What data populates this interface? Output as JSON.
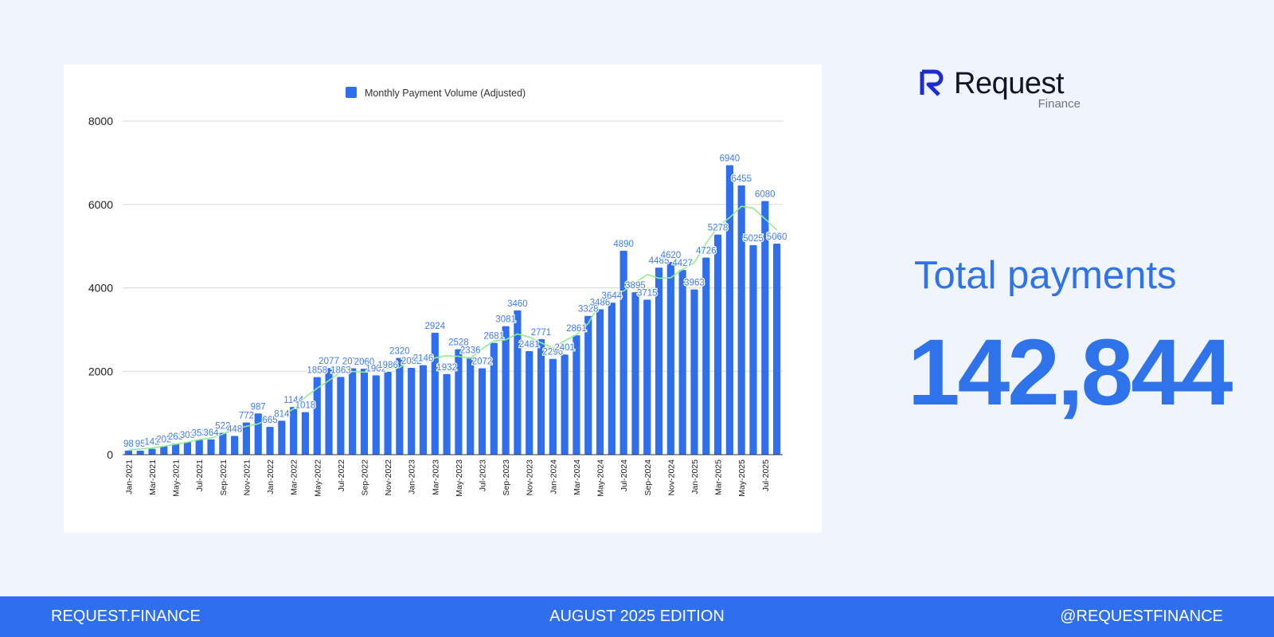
{
  "brand": {
    "name": "Request",
    "sub": "Finance"
  },
  "stats": {
    "label": "Total payments",
    "value": "142,844"
  },
  "footer": {
    "left": "REQUEST.FINANCE",
    "center": "AUGUST 2025  EDITION",
    "right": "@REQUESTFINANCE"
  },
  "colors": {
    "bar": "#2f6fee",
    "trend": "#8ff08f",
    "page_bg": "#f0f5fd",
    "footer_bg": "#2f6fee"
  },
  "chart_data": {
    "type": "bar",
    "legend": [
      "Monthly Payment Volume (Adjusted)"
    ],
    "legend_position": "top",
    "ylim": [
      0,
      8000
    ],
    "yticks": [
      0,
      2000,
      4000,
      6000,
      8000
    ],
    "grid": true,
    "trendline": "moving average",
    "categories": [
      "Jan-2021",
      "Feb-2021",
      "Mar-2021",
      "Apr-2021",
      "May-2021",
      "Jun-2021",
      "Jul-2021",
      "Aug-2021",
      "Sep-2021",
      "Oct-2021",
      "Nov-2021",
      "Dec-2021",
      "Jan-2022",
      "Feb-2022",
      "Mar-2022",
      "Apr-2022",
      "May-2022",
      "Jun-2022",
      "Jul-2022",
      "Aug-2022",
      "Sep-2022",
      "Oct-2022",
      "Nov-2022",
      "Dec-2022",
      "Jan-2023",
      "Feb-2023",
      "Mar-2023",
      "Apr-2023",
      "May-2023",
      "Jun-2023",
      "Jul-2023",
      "Aug-2023",
      "Sep-2023",
      "Oct-2023",
      "Nov-2023",
      "Dec-2023",
      "Jan-2024",
      "Feb-2024",
      "Mar-2024",
      "Apr-2024",
      "May-2024",
      "Jun-2024",
      "Jul-2024",
      "Aug-2024",
      "Sep-2024",
      "Oct-2024",
      "Nov-2024",
      "Dec-2024",
      "Jan-2025",
      "Feb-2025",
      "Mar-2025",
      "Apr-2025",
      "May-2025",
      "Jun-2025",
      "Jul-2025",
      "Aug-2025"
    ],
    "xtick_labels": [
      "Jan-2021",
      "Mar-2021",
      "May-2021",
      "Jul-2021",
      "Sep-2021",
      "Nov-2021",
      "Jan-2022",
      "Mar-2022",
      "May-2022",
      "Jul-2022",
      "Sep-2022",
      "Nov-2022",
      "Jan-2023",
      "Mar-2023",
      "May-2023",
      "Jul-2023",
      "Sep-2023",
      "Nov-2023",
      "Jan-2024",
      "Mar-2024",
      "May-2024",
      "Jul-2024",
      "Sep-2024",
      "Nov-2024",
      "Jan-2025",
      "Mar-2025",
      "May-2025",
      "Jul-2025"
    ],
    "series": [
      {
        "name": "Monthly Payment Volume (Adjusted)",
        "values": [
          98,
          95,
          142,
          202,
          263,
          303,
          353,
          364,
          522,
          448,
          772,
          987,
          665,
          814,
          1144,
          1018,
          1858,
          2077,
          1863,
          2072,
          2060,
          1902,
          1986,
          2320,
          2082,
          2146,
          2924,
          1932,
          2528,
          2336,
          2072,
          2681,
          3081,
          3460,
          2481,
          2771,
          2296,
          2401,
          2861,
          3328,
          3486,
          3644,
          4890,
          3895,
          3715,
          4485,
          4620,
          4427,
          3963,
          4726,
          5278,
          6940,
          6455,
          5025,
          6080,
          5060
        ],
        "labels": [
          "98",
          "95",
          "142",
          "202",
          "263",
          "303",
          "353",
          "364",
          "522",
          "448",
          "772",
          "987",
          "665",
          "814",
          "1144",
          "1018",
          "1858",
          "2077",
          "1863",
          "2072",
          "2060",
          "1902",
          "1986",
          "2320",
          "2082",
          "2146",
          "2924",
          "1932",
          "2528",
          "2336",
          "2072",
          "2681",
          "3081",
          "3460",
          "2481",
          "2771",
          "2296",
          "2401",
          "2861",
          "3328",
          "3486",
          "3644",
          "4890",
          "3895",
          "3715",
          "4485",
          "4620",
          "4427",
          "3963",
          "4726",
          "5278",
          "6940",
          "6455",
          "5025",
          "6080",
          "5060"
        ]
      }
    ]
  }
}
